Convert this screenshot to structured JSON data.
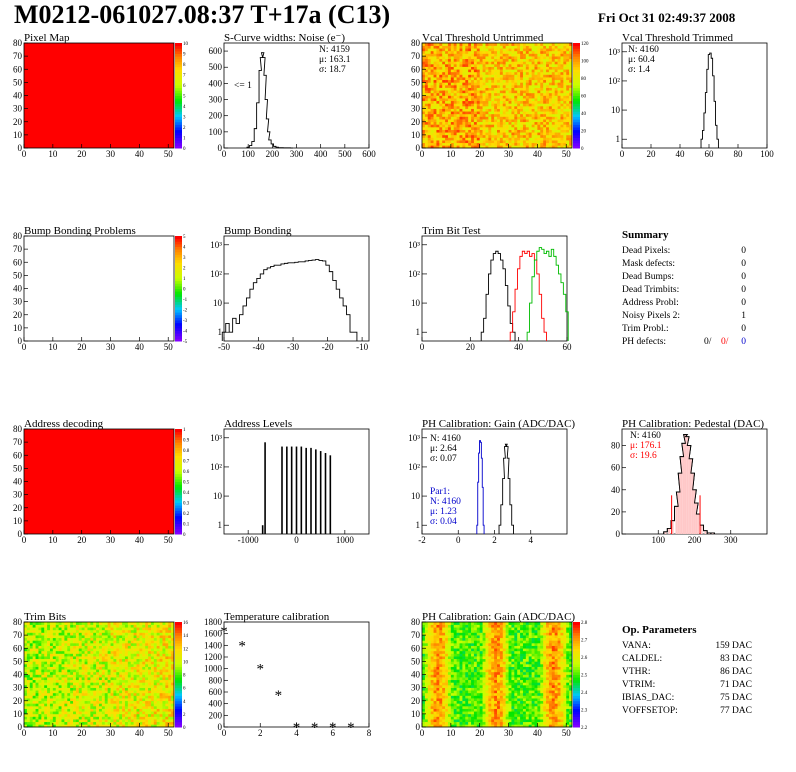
{
  "header": {
    "title": "M0212-061027.08:37 T+17a (C13)",
    "date": "Fri Oct 31 02:49:37 2008"
  },
  "summary": {
    "title": "Summary",
    "rows": [
      {
        "label": "Dead Pixels:",
        "value": "0"
      },
      {
        "label": "Mask defects:",
        "value": "0"
      },
      {
        "label": "Dead Bumps:",
        "value": "0"
      },
      {
        "label": "Dead Trimbits:",
        "value": "0"
      },
      {
        "label": "Address Probl:",
        "value": "0"
      },
      {
        "label": "Noisy Pixels 2:",
        "value": "1"
      },
      {
        "label": "Trim Probl.:",
        "value": "0"
      }
    ],
    "ph_defects": {
      "label": "PH defects:",
      "v1": "0/",
      "v2": "0/",
      "v3": "0"
    }
  },
  "op_params": {
    "title": "Op. Parameters",
    "rows": [
      {
        "label": "VANA:",
        "value": "159 DAC"
      },
      {
        "label": "CALDEL:",
        "value": "83 DAC"
      },
      {
        "label": "VTHR:",
        "value": "86 DAC"
      },
      {
        "label": "VTRIM:",
        "value": "71 DAC"
      },
      {
        "label": "IBIAS_DAC:",
        "value": "75 DAC"
      },
      {
        "label": "VOFFSETOP:",
        "value": "77 DAC"
      }
    ]
  },
  "colors": {
    "red": "#ff0000",
    "blue": "#0000cc",
    "green": "#00bb00",
    "black": "#000000"
  },
  "chart_data": [
    {
      "id": "pixel_map",
      "type": "heatmap",
      "title": "Pixel Map",
      "xlim": [
        0,
        52
      ],
      "ylim": [
        0,
        80
      ],
      "xticks": [
        "0",
        "10",
        "20",
        "30",
        "40",
        "50"
      ],
      "yticks": [
        "0",
        "10",
        "20",
        "30",
        "40",
        "50",
        "60",
        "70",
        "80"
      ],
      "uniform_value": 10,
      "palette": "rainbow",
      "palette_labels": [
        "0",
        "1",
        "2",
        "3",
        "4",
        "5",
        "6",
        "7",
        "8",
        "9",
        "10"
      ]
    },
    {
      "id": "scurve_noise",
      "type": "histogram",
      "title": "S-Curve widths: Noise (e⁻)",
      "xlim": [
        0,
        600
      ],
      "ylim": [
        0,
        650
      ],
      "xticks": [
        "0",
        "100",
        "200",
        "300",
        "400",
        "500",
        "600"
      ],
      "yticks": [
        "0",
        "100",
        "200",
        "300",
        "400",
        "500",
        "600"
      ],
      "stats": [
        "N: 4159",
        "μ: 163.1",
        "σ: 18.7"
      ],
      "annotation": "<= 1",
      "x": [
        100,
        110,
        120,
        130,
        140,
        150,
        155,
        160,
        165,
        170,
        175,
        180,
        185,
        190,
        200,
        210,
        220,
        230,
        240,
        250,
        260,
        270,
        280
      ],
      "values": [
        5,
        15,
        40,
        120,
        280,
        480,
        560,
        590,
        560,
        450,
        300,
        180,
        100,
        50,
        25,
        10,
        5,
        2,
        2,
        1,
        1,
        1,
        0
      ]
    },
    {
      "id": "vcal_untrimmed",
      "type": "heatmap",
      "title": "Vcal Threshold Untrimmed",
      "xlim": [
        0,
        52
      ],
      "ylim": [
        0,
        80
      ],
      "xticks": [
        "0",
        "10",
        "20",
        "30",
        "40",
        "50"
      ],
      "yticks": [
        "0",
        "10",
        "20",
        "30",
        "40",
        "50",
        "60",
        "70",
        "80"
      ],
      "palette": "rainbow",
      "palette_labels": [
        "0",
        "20",
        "40",
        "60",
        "80",
        "100",
        "120"
      ]
    },
    {
      "id": "vcal_trimmed",
      "type": "histogram",
      "title": "Vcal Threshold Trimmed",
      "log_y": true,
      "xlim": [
        0,
        100
      ],
      "ylim_log": [
        0.5,
        2000
      ],
      "xticks": [
        "0",
        "20",
        "40",
        "60",
        "80",
        "100"
      ],
      "yticks": [
        "1",
        "10",
        "10²",
        "10³"
      ],
      "stats": [
        "N: 4160",
        "μ: 60.4",
        "σ: 1.4"
      ],
      "x": [
        55,
        56,
        57,
        58,
        59,
        60,
        61,
        62,
        63,
        64,
        65,
        66
      ],
      "values": [
        1,
        2,
        8,
        40,
        250,
        800,
        900,
        600,
        150,
        20,
        3,
        1
      ]
    },
    {
      "id": "bump_problems",
      "type": "heatmap",
      "title": "Bump Bonding Problems",
      "xlim": [
        0,
        52
      ],
      "ylim": [
        0,
        80
      ],
      "xticks": [
        "0",
        "10",
        "20",
        "30",
        "40",
        "50"
      ],
      "yticks": [
        "0",
        "10",
        "20",
        "30",
        "40",
        "50",
        "60",
        "70",
        "80"
      ],
      "empty": true,
      "palette": "rainbow",
      "palette_labels": [
        "-5",
        "-4",
        "-3",
        "-2",
        "-1",
        "0",
        "1",
        "2",
        "3",
        "4",
        "5"
      ]
    },
    {
      "id": "bump_bonding",
      "type": "histogram",
      "title": "Bump Bonding",
      "log_y": true,
      "xlim": [
        -50,
        -8
      ],
      "ylim_log": [
        0.5,
        2000
      ],
      "xticks": [
        "-50",
        "-40",
        "-30",
        "-20",
        "-10"
      ],
      "yticks": [
        "1",
        "10",
        "10²",
        "10³"
      ],
      "x": [
        -50,
        -49,
        -48,
        -47,
        -46,
        -45,
        -44,
        -43,
        -42,
        -41,
        -40,
        -39,
        -38,
        -37,
        -36,
        -35,
        -34,
        -33,
        -32,
        -31,
        -30,
        -29,
        -28,
        -27,
        -26,
        -25,
        -24,
        -23,
        -22,
        -21,
        -20,
        -19,
        -18,
        -17,
        -16,
        -15,
        -14,
        -13,
        -12
      ],
      "values": [
        1,
        2,
        1,
        3,
        2,
        4,
        8,
        15,
        30,
        50,
        70,
        100,
        140,
        160,
        180,
        200,
        200,
        220,
        230,
        240,
        240,
        250,
        260,
        260,
        280,
        290,
        300,
        310,
        290,
        280,
        200,
        120,
        60,
        30,
        15,
        8,
        4,
        1,
        1
      ]
    },
    {
      "id": "trim_bit_test",
      "type": "histogram",
      "title": "Trim Bit Test",
      "log_y": true,
      "xlim": [
        0,
        60
      ],
      "ylim_log": [
        0.5,
        2000
      ],
      "xticks": [
        "0",
        "20",
        "40",
        "60"
      ],
      "yticks": [
        "1",
        "10",
        "10²",
        "10³"
      ],
      "series": [
        {
          "name": "",
          "color": "#000000",
          "x": [
            25,
            26,
            27,
            28,
            29,
            30,
            31,
            32,
            33,
            34,
            35,
            36,
            37,
            38
          ],
          "values": [
            1,
            3,
            20,
            100,
            300,
            500,
            600,
            500,
            300,
            150,
            40,
            8,
            2,
            1
          ]
        },
        {
          "name": "",
          "color": "#ff0000",
          "x": [
            37,
            38,
            39,
            40,
            41,
            42,
            43,
            44,
            45,
            46,
            47,
            48,
            49,
            50,
            51
          ],
          "values": [
            1,
            5,
            30,
            150,
            400,
            600,
            500,
            600,
            400,
            500,
            300,
            100,
            20,
            3,
            1
          ]
        },
        {
          "name": "",
          "color": "#00bb00",
          "x": [
            44,
            45,
            46,
            47,
            48,
            49,
            50,
            51,
            52,
            53,
            54,
            55,
            56,
            57,
            58,
            59,
            60
          ],
          "values": [
            1,
            10,
            80,
            300,
            600,
            800,
            700,
            500,
            600,
            400,
            700,
            400,
            200,
            100,
            50,
            20,
            5
          ]
        }
      ]
    },
    {
      "id": "address_decoding",
      "type": "heatmap",
      "title": "Address decoding",
      "xlim": [
        0,
        52
      ],
      "ylim": [
        0,
        80
      ],
      "xticks": [
        "0",
        "10",
        "20",
        "30",
        "40",
        "50"
      ],
      "yticks": [
        "0",
        "10",
        "20",
        "30",
        "40",
        "50",
        "60",
        "70",
        "80"
      ],
      "uniform_value": 1,
      "palette": "rainbow",
      "palette_labels": [
        "0",
        "0.1",
        "0.2",
        "0.3",
        "0.4",
        "0.5",
        "0.6",
        "0.7",
        "0.8",
        "0.9",
        "1"
      ]
    },
    {
      "id": "address_levels",
      "type": "histogram",
      "title": "Address Levels",
      "log_y": true,
      "xlim": [
        -1500,
        1500
      ],
      "ylim_log": [
        0.5,
        2000
      ],
      "xticks": [
        "-1000",
        "0",
        "1000"
      ],
      "yticks": [
        "1",
        "10",
        "10²",
        "10³"
      ],
      "x": [
        -700,
        -650,
        -300,
        -200,
        -100,
        0,
        100,
        200,
        300,
        400,
        500,
        600,
        700
      ],
      "values": [
        1,
        700,
        500,
        500,
        500,
        500,
        500,
        450,
        450,
        400,
        350,
        300,
        250
      ]
    },
    {
      "id": "ph_gain",
      "type": "histogram",
      "title": "PH Calibration: Gain (ADC/DAC)",
      "log_y": true,
      "xlim": [
        -2,
        6
      ],
      "ylim_log": [
        0.5,
        2000
      ],
      "xticks": [
        "-2",
        "0",
        "2",
        "4"
      ],
      "yticks": [
        "1",
        "10",
        "10²",
        "10³"
      ],
      "stats": [
        "N: 4160",
        "μ: 2.64",
        "σ: 0.07"
      ],
      "stats2_title": "Par1:",
      "stats2": [
        "N: 4160",
        "μ: 1.23",
        "σ: 0.04"
      ],
      "series": [
        {
          "name": "",
          "color": "#000000",
          "x": [
            2.3,
            2.4,
            2.5,
            2.55,
            2.6,
            2.65,
            2.7,
            2.75,
            2.8,
            2.9,
            3.0
          ],
          "values": [
            1,
            5,
            40,
            200,
            500,
            600,
            500,
            200,
            40,
            5,
            1
          ]
        },
        {
          "name": "Par1",
          "color": "#0000cc",
          "x": [
            1.05,
            1.1,
            1.15,
            1.2,
            1.25,
            1.3,
            1.35,
            1.4
          ],
          "values": [
            1,
            30,
            300,
            800,
            700,
            200,
            20,
            1
          ]
        }
      ]
    },
    {
      "id": "ph_pedestal",
      "type": "histogram",
      "title": "PH Calibration: Pedestal (DAC)",
      "xlim": [
        0,
        400
      ],
      "ylim": [
        0,
        95
      ],
      "xticks": [
        "100",
        "200",
        "300"
      ],
      "yticks": [
        "0",
        "20",
        "40",
        "60",
        "80"
      ],
      "stats": [
        "N: 4160",
        "μ: 176.1",
        "σ: 19.6"
      ],
      "x": [
        120,
        130,
        140,
        150,
        155,
        160,
        165,
        170,
        175,
        180,
        185,
        190,
        195,
        200,
        205,
        210,
        220,
        230,
        240,
        250
      ],
      "values": [
        2,
        5,
        12,
        25,
        38,
        55,
        70,
        82,
        90,
        88,
        80,
        68,
        55,
        40,
        28,
        18,
        8,
        3,
        1,
        1
      ],
      "fit_markers": [
        136.9,
        215.3
      ]
    },
    {
      "id": "trim_bits",
      "type": "heatmap",
      "title": "Trim Bits",
      "xlim": [
        0,
        52
      ],
      "ylim": [
        0,
        80
      ],
      "xticks": [
        "0",
        "10",
        "20",
        "30",
        "40",
        "50"
      ],
      "yticks": [
        "0",
        "10",
        "20",
        "30",
        "40",
        "50",
        "60",
        "70",
        "80"
      ],
      "palette": "rainbow",
      "palette_labels": [
        "0",
        "2",
        "4",
        "6",
        "8",
        "10",
        "12",
        "14",
        "16"
      ]
    },
    {
      "id": "temp_cal",
      "type": "scatter",
      "title": "Temperature calibration",
      "xlim": [
        0,
        8
      ],
      "ylim": [
        0,
        1800
      ],
      "xticks": [
        "0",
        "2",
        "4",
        "6",
        "8"
      ],
      "yticks": [
        "0",
        "200",
        "400",
        "600",
        "800",
        "1000",
        "1200",
        "1400",
        "1600",
        "1800"
      ],
      "x": [
        0,
        1,
        2,
        3,
        4,
        5,
        6,
        7
      ],
      "values": [
        1650,
        1400,
        1000,
        550,
        0,
        0,
        0,
        0
      ]
    },
    {
      "id": "ph_gain_map",
      "type": "heatmap",
      "title": "PH Calibration: Gain (ADC/DAC)",
      "xlim": [
        0,
        52
      ],
      "ylim": [
        0,
        80
      ],
      "xticks": [
        "0",
        "10",
        "20",
        "30",
        "40",
        "50"
      ],
      "yticks": [
        "0",
        "10",
        "20",
        "30",
        "40",
        "50",
        "60",
        "70",
        "80"
      ],
      "palette": "rainbow",
      "palette_labels": [
        "2.2",
        "2.3",
        "2.4",
        "2.5",
        "2.6",
        "2.7",
        "2.8"
      ]
    }
  ]
}
